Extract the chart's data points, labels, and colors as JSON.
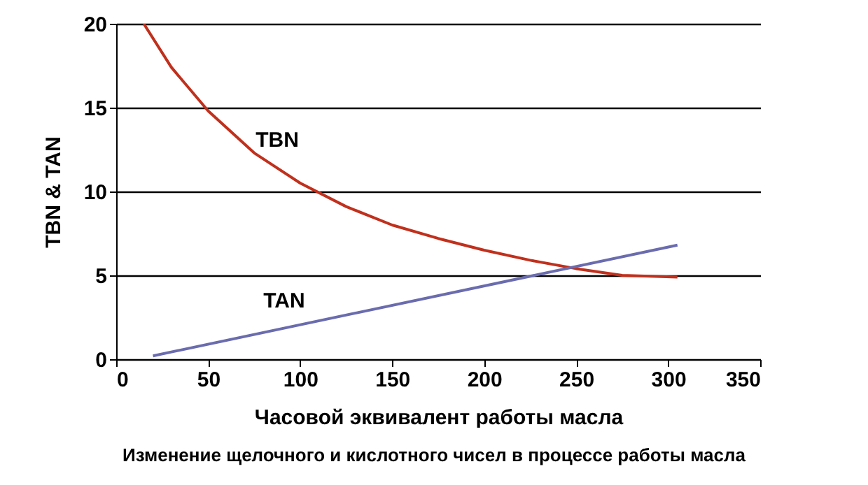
{
  "chart_data": {
    "type": "line",
    "xlabel": "Часовой эквивалент работы масла",
    "ylabel": "TBN & TAN",
    "xlim": [
      0,
      350
    ],
    "xticks": [
      0,
      50,
      100,
      150,
      200,
      250,
      300,
      350
    ],
    "ylim": [
      0,
      20
    ],
    "yticks": [
      0,
      5,
      10,
      15,
      20
    ],
    "grid": "y",
    "marker": "none",
    "line_style": "solid",
    "series": [
      {
        "name": "TBN",
        "color": "#c0301c",
        "x": [
          15,
          30,
          50,
          75,
          100,
          125,
          150,
          175,
          200,
          225,
          250,
          275,
          305
        ],
        "values": [
          20,
          17.4,
          14.8,
          12.3,
          10.5,
          9.1,
          8,
          7.2,
          6.5,
          5.9,
          5.4,
          5,
          4.9
        ]
      },
      {
        "name": "TAN",
        "color": "#6a6cae",
        "x": [
          20,
          305
        ],
        "values": [
          0.2,
          6.8
        ]
      }
    ],
    "annotations": [
      "Изменение щелочного и кислотного чисел в процессе работы масла"
    ]
  }
}
